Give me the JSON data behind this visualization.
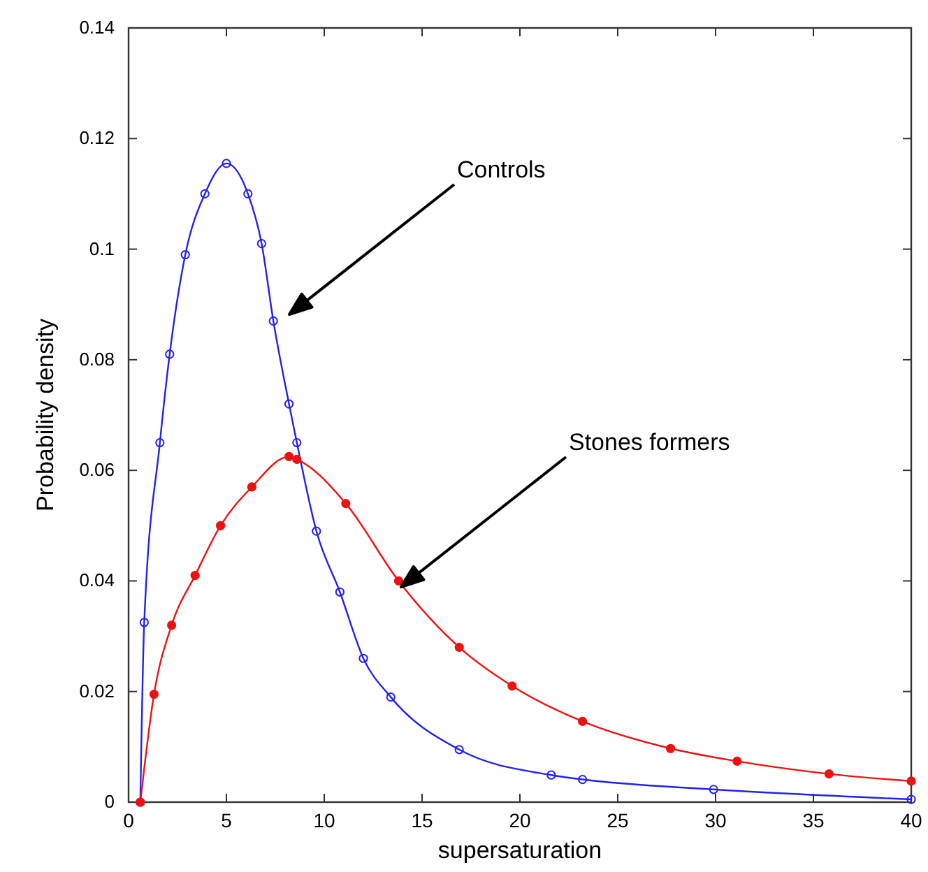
{
  "chart_data": {
    "type": "line",
    "xlabel": "supersaturation",
    "ylabel": "Probability density",
    "xlim": [
      0,
      40
    ],
    "xticks": [
      0,
      5,
      10,
      15,
      20,
      25,
      30,
      35,
      40
    ],
    "ylim": [
      0,
      0.14
    ],
    "yticks": [
      0,
      0.02,
      0.04,
      0.06,
      0.08,
      0.1,
      0.12,
      0.14
    ],
    "grid": false,
    "marker": "circle",
    "line_style": "solid",
    "series": [
      {
        "color": "#2222ee",
        "x": [
          0.6,
          0.8,
          1.6,
          2.1,
          2.9,
          3.9,
          5,
          6.1,
          6.8,
          7.4,
          8.2,
          8.6,
          9.6,
          10.8,
          12,
          13.4,
          16.9,
          21.6,
          23.2,
          29.9,
          40
        ],
        "values": [
          0,
          0.0325,
          0.065,
          0.081,
          0.099,
          0.11,
          0.1155,
          0.11,
          0.101,
          0.087,
          0.072,
          0.065,
          0.049,
          0.038,
          0.026,
          0.019,
          0.0095,
          0.0049,
          0.0041,
          0.0023,
          0.0005
        ]
      },
      {
        "color": "#ee1111",
        "x": [
          0.6,
          1.3,
          2.2,
          3.4,
          4.7,
          6.3,
          8.2,
          8.6,
          11.1,
          13.8,
          16.9,
          19.6,
          23.2,
          27.7,
          31.1,
          35.8,
          40
        ],
        "values": [
          0,
          0.0195,
          0.032,
          0.041,
          0.05,
          0.057,
          0.0625,
          0.062,
          0.054,
          0.04,
          0.028,
          0.021,
          0.0146,
          0.0097,
          0.0074,
          0.0051,
          0.0038
        ]
      }
    ],
    "annotations": [
      "Controls",
      "Stones formers"
    ]
  }
}
